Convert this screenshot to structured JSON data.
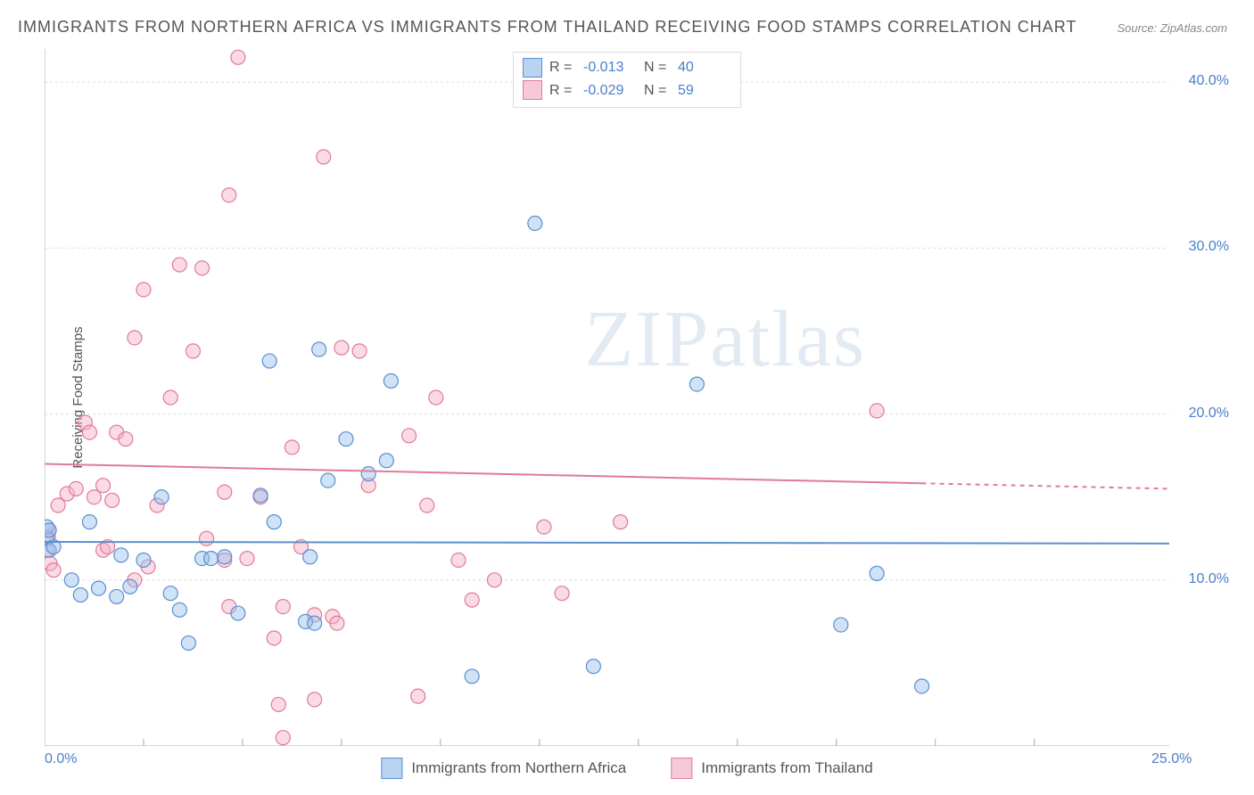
{
  "title": "IMMIGRANTS FROM NORTHERN AFRICA VS IMMIGRANTS FROM THAILAND RECEIVING FOOD STAMPS CORRELATION CHART",
  "source": "Source: ZipAtlas.com",
  "ylabel": "Receiving Food Stamps",
  "watermark": "ZIPatlas",
  "chart": {
    "type": "scatter",
    "xlim": [
      0,
      25
    ],
    "ylim": [
      0,
      42
    ],
    "xticks": [
      0,
      25
    ],
    "xtick_labels": [
      "0.0%",
      "25.0%"
    ],
    "yticks": [
      10,
      20,
      30,
      40
    ],
    "ytick_labels": [
      "10.0%",
      "20.0%",
      "30.0%",
      "40.0%"
    ],
    "xtick_minor": [
      2.2,
      4.4,
      6.6,
      8.8,
      11.0,
      13.2,
      15.4,
      17.6,
      19.8,
      22.0
    ],
    "background_color": "#ffffff",
    "grid_color": "#dddddd",
    "axis_color": "#aaaaaa",
    "marker_radius": 8,
    "marker_stroke_width": 1.2,
    "series": [
      {
        "name": "Immigrants from Northern Africa",
        "fill": "rgba(150, 190, 235, 0.45)",
        "stroke": "#5a8fd0",
        "swatch_fill": "#b9d3f0",
        "swatch_stroke": "#5a8fd0",
        "R": "-0.013",
        "N": "40",
        "trend": {
          "y_start": 12.3,
          "y_end": 12.2,
          "x_dash_start": 25
        },
        "points": [
          [
            0.05,
            12.5
          ],
          [
            0.05,
            13.2
          ],
          [
            0.1,
            11.8
          ],
          [
            0.1,
            13.0
          ],
          [
            0.2,
            12.0
          ],
          [
            0.6,
            10.0
          ],
          [
            0.8,
            9.1
          ],
          [
            1.0,
            13.5
          ],
          [
            1.2,
            9.5
          ],
          [
            1.6,
            9.0
          ],
          [
            1.7,
            11.5
          ],
          [
            1.9,
            9.6
          ],
          [
            2.2,
            11.2
          ],
          [
            2.6,
            15.0
          ],
          [
            2.8,
            9.2
          ],
          [
            3.0,
            8.2
          ],
          [
            3.2,
            6.2
          ],
          [
            3.5,
            11.3
          ],
          [
            3.7,
            11.3
          ],
          [
            4.0,
            11.4
          ],
          [
            4.3,
            8.0
          ],
          [
            4.8,
            15.1
          ],
          [
            5.0,
            23.2
          ],
          [
            5.1,
            13.5
          ],
          [
            5.8,
            7.5
          ],
          [
            5.9,
            11.4
          ],
          [
            6.0,
            7.4
          ],
          [
            6.1,
            23.9
          ],
          [
            6.3,
            16.0
          ],
          [
            6.7,
            18.5
          ],
          [
            7.2,
            16.4
          ],
          [
            7.6,
            17.2
          ],
          [
            7.7,
            22.0
          ],
          [
            9.5,
            4.2
          ],
          [
            10.9,
            31.5
          ],
          [
            12.2,
            4.8
          ],
          [
            17.7,
            7.3
          ],
          [
            19.5,
            3.6
          ],
          [
            14.5,
            21.8
          ],
          [
            18.5,
            10.4
          ]
        ]
      },
      {
        "name": "Immigrants from Thailand",
        "fill": "rgba(245, 175, 195, 0.45)",
        "stroke": "#e07a9a",
        "swatch_fill": "#f6c9d8",
        "swatch_stroke": "#e07a9a",
        "R": "-0.029",
        "N": "59",
        "trend": {
          "y_start": 17.0,
          "y_end": 15.5,
          "x_dash_start": 19.5
        },
        "points": [
          [
            0.05,
            11.8
          ],
          [
            0.08,
            12.6
          ],
          [
            0.1,
            13.0
          ],
          [
            0.12,
            11.0
          ],
          [
            0.2,
            10.6
          ],
          [
            0.3,
            14.5
          ],
          [
            0.5,
            15.2
          ],
          [
            0.7,
            15.5
          ],
          [
            0.9,
            19.5
          ],
          [
            1.0,
            18.9
          ],
          [
            1.1,
            15.0
          ],
          [
            1.3,
            15.7
          ],
          [
            1.3,
            11.8
          ],
          [
            1.4,
            12.0
          ],
          [
            1.5,
            14.8
          ],
          [
            1.6,
            18.9
          ],
          [
            2.0,
            24.6
          ],
          [
            2.0,
            10.0
          ],
          [
            2.2,
            27.5
          ],
          [
            2.3,
            10.8
          ],
          [
            2.5,
            14.5
          ],
          [
            2.8,
            21.0
          ],
          [
            3.0,
            29.0
          ],
          [
            3.3,
            23.8
          ],
          [
            3.5,
            28.8
          ],
          [
            3.6,
            12.5
          ],
          [
            4.0,
            15.3
          ],
          [
            4.0,
            11.2
          ],
          [
            4.1,
            8.4
          ],
          [
            4.1,
            33.2
          ],
          [
            4.3,
            41.5
          ],
          [
            4.5,
            11.3
          ],
          [
            4.8,
            15.0
          ],
          [
            5.1,
            6.5
          ],
          [
            5.2,
            2.5
          ],
          [
            5.3,
            8.4
          ],
          [
            5.5,
            18.0
          ],
          [
            5.7,
            12.0
          ],
          [
            6.0,
            7.9
          ],
          [
            6.0,
            2.8
          ],
          [
            6.2,
            35.5
          ],
          [
            6.4,
            7.8
          ],
          [
            6.5,
            7.4
          ],
          [
            6.6,
            24.0
          ],
          [
            7.0,
            23.8
          ],
          [
            7.2,
            15.7
          ],
          [
            8.1,
            18.7
          ],
          [
            8.3,
            3.0
          ],
          [
            8.5,
            14.5
          ],
          [
            8.7,
            21.0
          ],
          [
            9.2,
            11.2
          ],
          [
            9.5,
            8.8
          ],
          [
            10.0,
            10.0
          ],
          [
            11.1,
            13.2
          ],
          [
            11.5,
            9.2
          ],
          [
            12.8,
            13.5
          ],
          [
            18.5,
            20.2
          ],
          [
            5.3,
            0.5
          ],
          [
            1.8,
            18.5
          ]
        ]
      }
    ]
  },
  "legend_labels": {
    "R": "R =",
    "N": "N ="
  }
}
